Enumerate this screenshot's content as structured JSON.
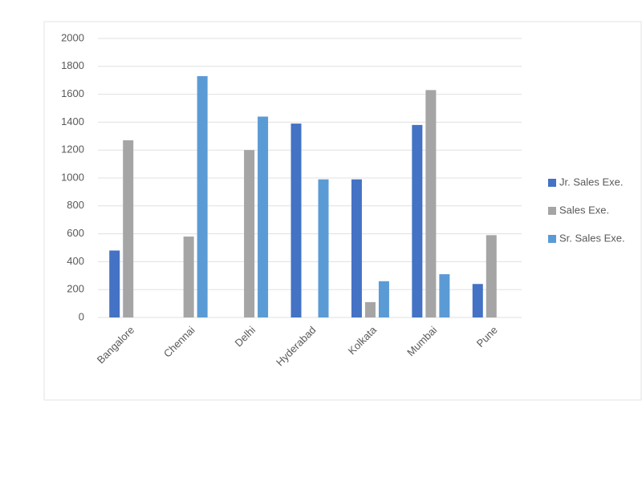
{
  "chart_data": {
    "type": "bar",
    "categories": [
      "Bangalore",
      "Chennai",
      "Delhi",
      "Hyderabad",
      "Kolkata",
      "Mumbai",
      "Pune"
    ],
    "series": [
      {
        "name": "Jr. Sales Exe.",
        "color": "#4472c4",
        "values": [
          480,
          null,
          null,
          1390,
          990,
          1380,
          240
        ]
      },
      {
        "name": "Sales Exe.",
        "color": "#a5a5a5",
        "values": [
          1270,
          580,
          1200,
          null,
          110,
          1630,
          590
        ]
      },
      {
        "name": "Sr. Sales Exe.",
        "color": "#5b9bd5",
        "values": [
          null,
          1730,
          1440,
          990,
          260,
          310,
          null
        ]
      }
    ],
    "ylim": [
      0,
      2000
    ],
    "yticks": [
      0,
      200,
      400,
      600,
      800,
      1000,
      1200,
      1400,
      1600,
      1800,
      2000
    ],
    "grid": true,
    "legend": "right"
  }
}
